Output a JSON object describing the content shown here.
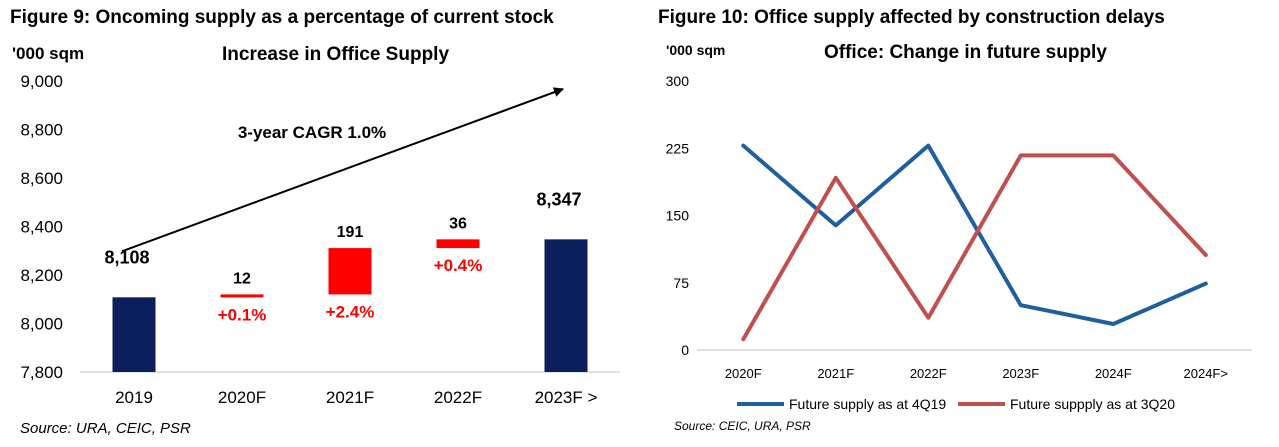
{
  "left": {
    "figure_title": "Figure 9: Oncoming supply as a percentage of current stock",
    "unit_label": "'000 sqm",
    "source": "Source: URA, CEIC, PSR"
  },
  "right": {
    "figure_title": "Figure 10: Office supply affected by construction delays",
    "unit_label": "'000 sqm",
    "source": "Source: CEIC, URA, PSR"
  },
  "chart_data": [
    {
      "type": "bar",
      "subtype": "waterfall",
      "title": "Increase in Office Supply",
      "xlabel": "",
      "ylabel": "'000 sqm",
      "categories": [
        "2019",
        "2020F",
        "2021F",
        "2022F",
        "2023F >"
      ],
      "bars": [
        {
          "category": "2019",
          "base": 7800,
          "top": 8108,
          "label": "8,108",
          "pct_label": "",
          "color": "#0b1f5c"
        },
        {
          "category": "2020F",
          "base": 8108,
          "top": 8120,
          "label": "12",
          "pct_label": "+0.1%",
          "color": "#ff0000"
        },
        {
          "category": "2021F",
          "base": 8120,
          "top": 8311,
          "label": "191",
          "pct_label": "+2.4%",
          "color": "#ff0000"
        },
        {
          "category": "2022F",
          "base": 8311,
          "top": 8347,
          "label": "36",
          "pct_label": "+0.4%",
          "color": "#ff0000"
        },
        {
          "category": "2023F >",
          "base": 7800,
          "top": 8347,
          "label": "8,347",
          "pct_label": "",
          "color": "#0b1f5c"
        }
      ],
      "ylim": [
        7800,
        9000
      ],
      "yticks": [
        7800,
        8000,
        8200,
        8400,
        8600,
        8800,
        9000
      ],
      "ytick_labels": [
        "7,800",
        "8,000",
        "8,200",
        "8,400",
        "8,600",
        "8,800",
        "9,000"
      ],
      "annotation": "3-year CAGR 1.0%",
      "grid": false,
      "legend": "none",
      "colors": {
        "total": "#0b1f5c",
        "increment": "#ff0000",
        "pct_text": "#ff0000"
      }
    },
    {
      "type": "line",
      "title": "Office: Change in future supply",
      "xlabel": "",
      "ylabel": "'000 sqm",
      "categories": [
        "2020F",
        "2021F",
        "2022F",
        "2023F",
        "2024F",
        "2024F>"
      ],
      "series": [
        {
          "name": "Future supply as at 4Q19",
          "values": [
            228,
            139,
            228,
            50,
            29,
            74
          ],
          "color": "#1f5fa0"
        },
        {
          "name": "Future suppply as at 3Q20",
          "values": [
            12,
            192,
            36,
            217,
            217,
            106
          ],
          "color": "#c0504d"
        }
      ],
      "ylim": [
        0,
        300
      ],
      "yticks": [
        0,
        75,
        150,
        225,
        300
      ],
      "ytick_labels": [
        "0",
        "75",
        "150",
        "225",
        "300"
      ],
      "grid": false,
      "legend": "bottom"
    }
  ]
}
